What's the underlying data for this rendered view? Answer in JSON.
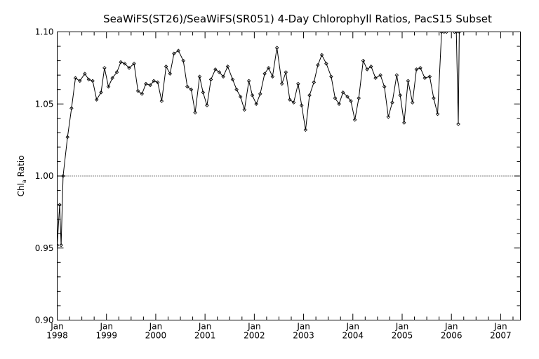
{
  "chart_data": {
    "type": "line",
    "title": "SeaWiFS(ST26)/SeaWiFS(SR051) 4-Day Chlorophyll Ratios, PacS15 Subset",
    "ylabel": {
      "main": "Chl",
      "sub": "a",
      "rest": " Ratio"
    },
    "xlim": [
      1998.0,
      2007.4
    ],
    "ylim": [
      0.9,
      1.1
    ],
    "y_ticks": [
      0.9,
      0.95,
      1.0,
      1.05,
      1.1
    ],
    "y_tick_labels": [
      "0.90",
      "0.95",
      "1.00",
      "1.05",
      "1.10"
    ],
    "x_ticks": [
      1998,
      1999,
      2000,
      2001,
      2002,
      2003,
      2004,
      2005,
      2006,
      2007
    ],
    "x_tick_month": "Jan",
    "x_tick_years": [
      "1998",
      "1999",
      "2000",
      "2001",
      "2002",
      "2003",
      "2004",
      "2005",
      "2006",
      "2007"
    ],
    "reference_line": {
      "y": 1.0,
      "style": "dotted"
    },
    "grid": false,
    "marker": "diamond",
    "series": [
      {
        "x": [
          1998.0,
          1998.05,
          1998.08,
          1998.12,
          1998.21,
          1998.29,
          1998.37,
          1998.46,
          1998.56,
          1998.64,
          1998.72,
          1998.8,
          1998.89,
          1998.96,
          1999.04,
          1999.12,
          1999.21,
          1999.29,
          1999.37,
          1999.46,
          1999.56,
          1999.64,
          1999.72,
          1999.8,
          1999.89,
          1999.96,
          2000.04,
          2000.12,
          2000.21,
          2000.29,
          2000.37,
          2000.46,
          2000.56,
          2000.64,
          2000.72,
          2000.8,
          2000.89,
          2000.96,
          2001.04,
          2001.12,
          2001.21,
          2001.29,
          2001.37,
          2001.46,
          2001.56,
          2001.64,
          2001.72,
          2001.8,
          2001.89,
          2001.96,
          2002.04,
          2002.12,
          2002.21,
          2002.29,
          2002.37,
          2002.46,
          2002.56,
          2002.64,
          2002.72,
          2002.8,
          2002.89,
          2002.96,
          2003.04,
          2003.12,
          2003.21,
          2003.29,
          2003.37,
          2003.46,
          2003.56,
          2003.64,
          2003.72,
          2003.8,
          2003.89,
          2003.96,
          2004.04,
          2004.12,
          2004.21,
          2004.29,
          2004.37,
          2004.46,
          2004.56,
          2004.64,
          2004.72,
          2004.8,
          2004.89,
          2004.96,
          2005.04,
          2005.12,
          2005.21,
          2005.29,
          2005.37,
          2005.46,
          2005.56,
          2005.64,
          2005.72,
          2005.8,
          2005.85,
          2005.9,
          2006.06,
          2006.1,
          2006.14,
          2006.16
        ],
        "y": [
          0.952,
          0.98,
          0.952,
          1.0,
          1.027,
          1.047,
          1.068,
          1.066,
          1.071,
          1.067,
          1.066,
          1.053,
          1.058,
          1.075,
          1.062,
          1.068,
          1.072,
          1.079,
          1.078,
          1.075,
          1.078,
          1.059,
          1.057,
          1.064,
          1.063,
          1.066,
          1.065,
          1.052,
          1.076,
          1.071,
          1.085,
          1.087,
          1.08,
          1.062,
          1.06,
          1.044,
          1.069,
          1.058,
          1.049,
          1.067,
          1.074,
          1.072,
          1.069,
          1.076,
          1.067,
          1.06,
          1.055,
          1.046,
          1.066,
          1.056,
          1.05,
          1.057,
          1.071,
          1.075,
          1.069,
          1.089,
          1.064,
          1.072,
          1.053,
          1.051,
          1.064,
          1.049,
          1.032,
          1.056,
          1.065,
          1.077,
          1.084,
          1.078,
          1.069,
          1.054,
          1.05,
          1.058,
          1.055,
          1.052,
          1.039,
          1.054,
          1.08,
          1.074,
          1.076,
          1.068,
          1.07,
          1.062,
          1.041,
          1.051,
          1.07,
          1.056,
          1.037,
          1.066,
          1.051,
          1.074,
          1.075,
          1.068,
          1.069,
          1.054,
          1.043,
          1.1,
          1.1,
          1.1,
          1.1,
          1.1,
          1.036,
          1.1
        ]
      }
    ]
  }
}
